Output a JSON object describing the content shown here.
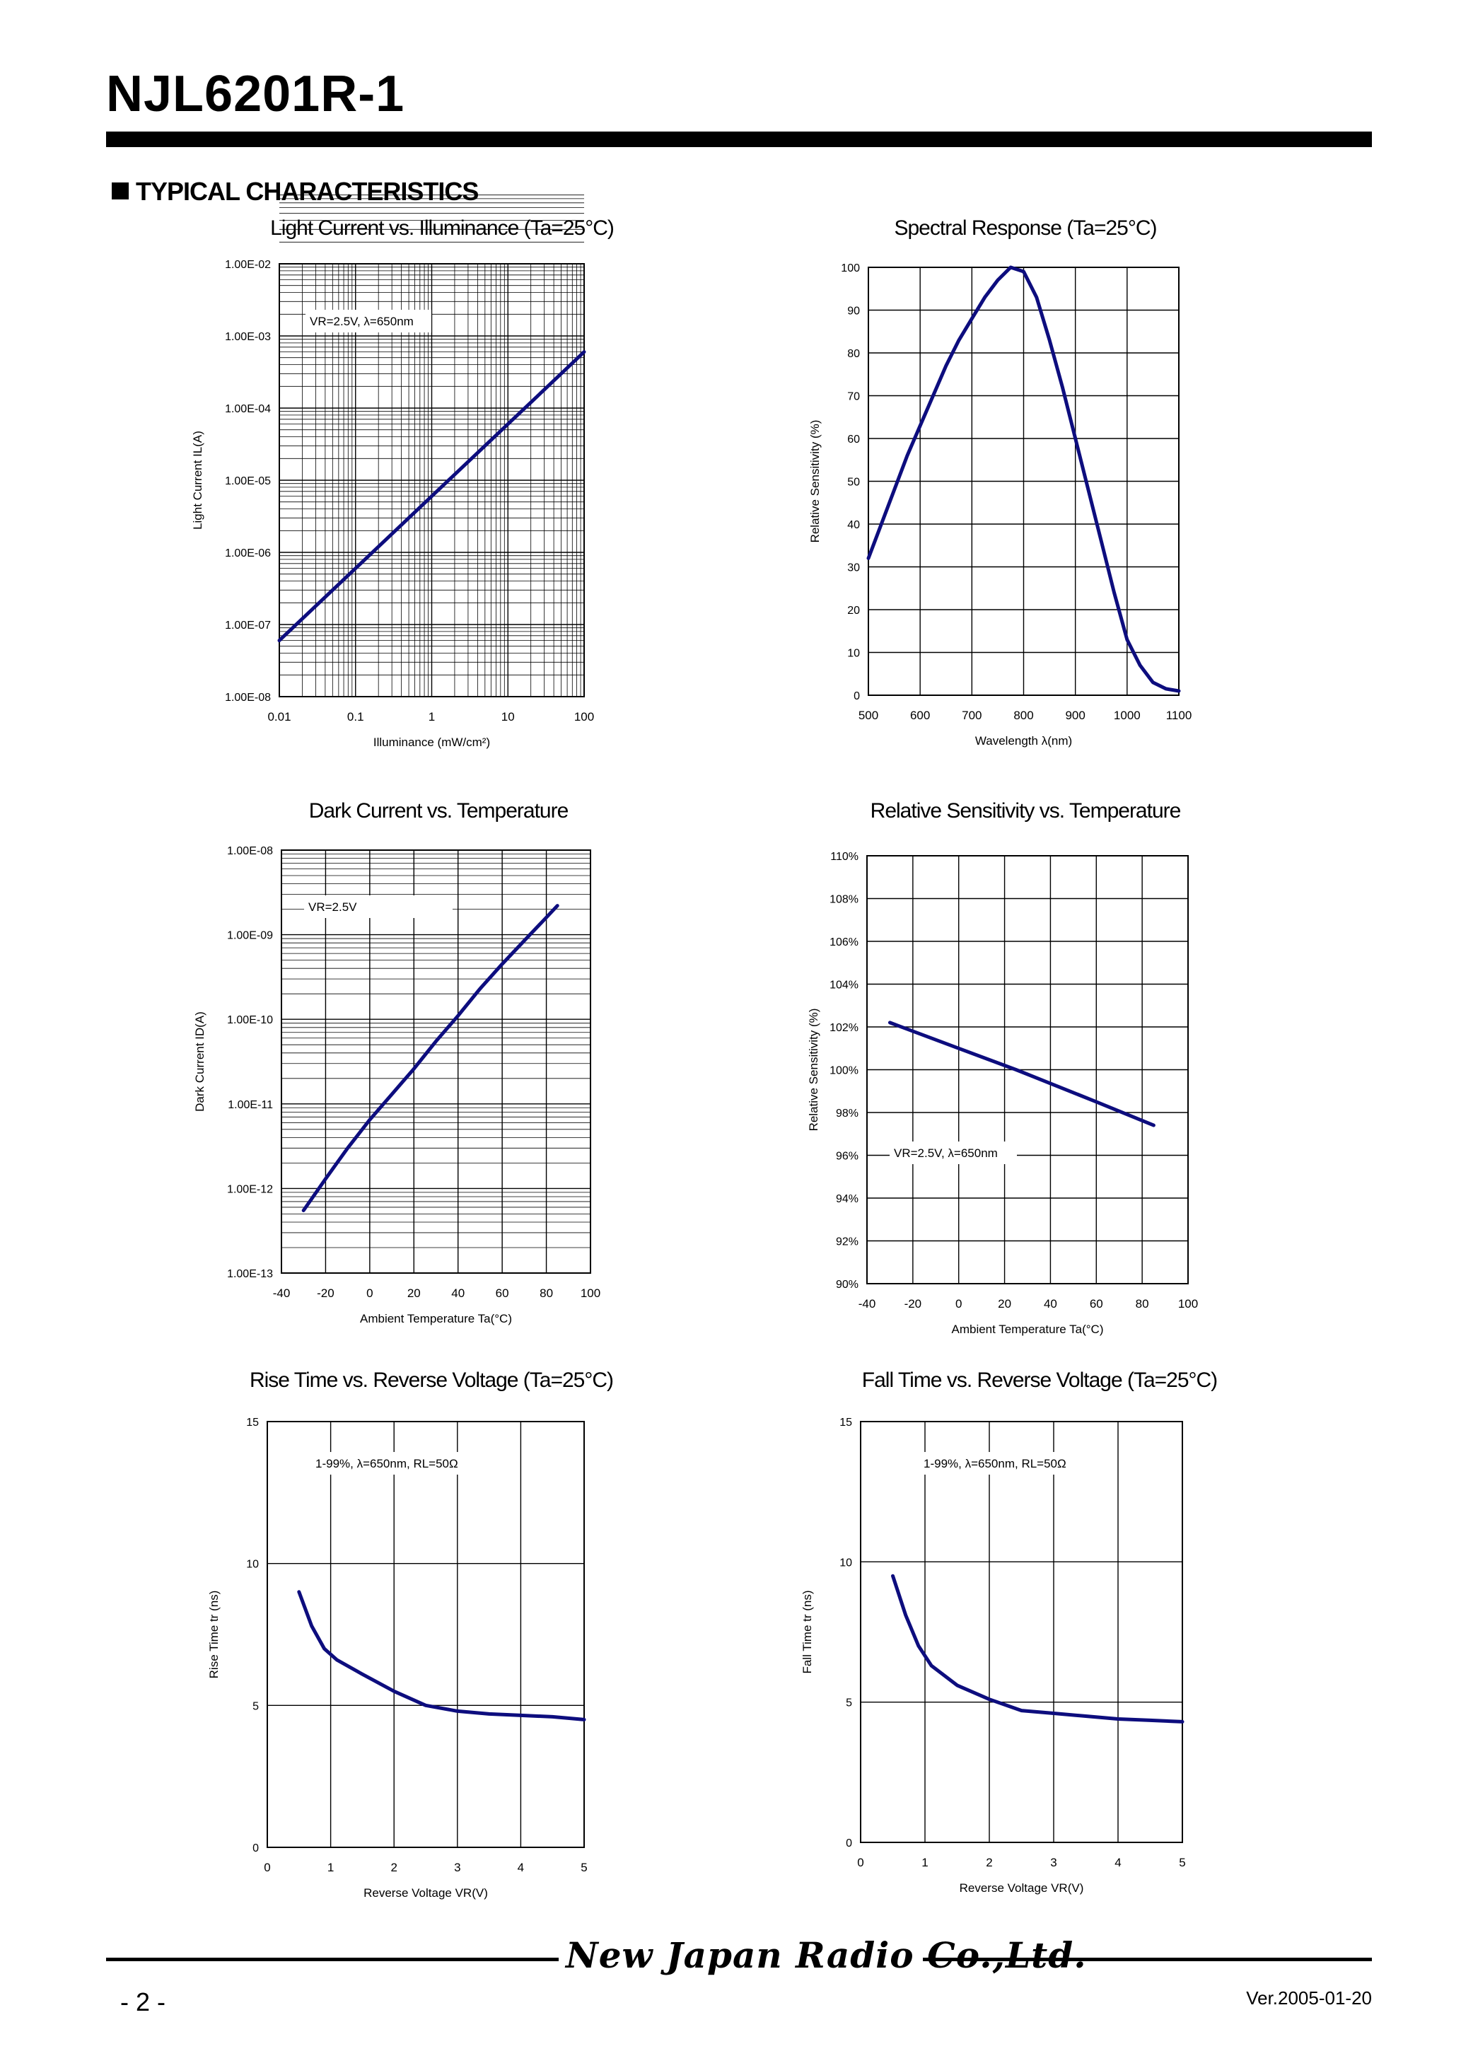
{
  "header": {
    "part_number": "NJL6201R-1",
    "section_title": "TYPICAL CHARACTERISTICS"
  },
  "footer": {
    "page": "- 2 -",
    "logo_text": "New Japan Radio Co.,Ltd.",
    "version": "Ver.2005-01-20"
  },
  "colors": {
    "curve": "#0D0D7E",
    "grid": "#000000"
  },
  "chart_data": [
    {
      "id": "light-current",
      "type": "line",
      "title": "Light Current vs. Illuminance (Ta=25°C)",
      "xlabel": "Illuminance  (mW/cm²)",
      "ylabel": "Light Current  IL(A)",
      "xscale": "log",
      "yscale": "log",
      "xlim": [
        0.01,
        100
      ],
      "ylim": [
        1e-08,
        0.01
      ],
      "xticks": [
        "0.01",
        "0.1",
        "1",
        "10",
        "100"
      ],
      "yticks": [
        "1.00E-02",
        "1.00E-03",
        "1.00E-04",
        "1.00E-05",
        "1.00E-06",
        "1.00E-07",
        "1.00E-08"
      ],
      "annotation": "VR=2.5V, λ=650nm",
      "grid": true,
      "series": [
        {
          "x": [
            0.01,
            0.1,
            1,
            10,
            100
          ],
          "y": [
            6e-08,
            6e-07,
            6e-06,
            6e-05,
            0.0006
          ]
        }
      ]
    },
    {
      "id": "spectral-response",
      "type": "line",
      "title": "Spectral Response (Ta=25°C)",
      "xlabel": "Wavelength λ(nm)",
      "ylabel": "Relative Sensitivity (%)",
      "xlim": [
        500,
        1100
      ],
      "ylim": [
        0,
        100
      ],
      "xticks": [
        "500",
        "600",
        "700",
        "800",
        "900",
        "1000",
        "1100"
      ],
      "yticks": [
        "100",
        "90",
        "80",
        "70",
        "60",
        "50",
        "40",
        "30",
        "20",
        "10",
        "0"
      ],
      "grid": true,
      "series": [
        {
          "x": [
            500,
            525,
            550,
            575,
            600,
            625,
            650,
            675,
            700,
            725,
            750,
            775,
            800,
            825,
            850,
            875,
            900,
            925,
            950,
            975,
            1000,
            1025,
            1050,
            1075,
            1100
          ],
          "y": [
            32,
            40,
            48,
            56,
            63,
            70,
            77,
            83,
            88,
            93,
            97,
            100,
            99,
            93,
            83,
            72,
            60,
            48,
            36,
            24,
            13,
            7,
            3,
            1.5,
            1
          ]
        }
      ]
    },
    {
      "id": "dark-current",
      "type": "line",
      "title": "Dark Current vs. Temperature",
      "xlabel": "Ambient Temperature Ta(°C)",
      "ylabel": "Dark Current  ID(A)",
      "yscale": "log",
      "xlim": [
        -40,
        100
      ],
      "ylim": [
        1e-13,
        1e-08
      ],
      "xticks": [
        "-40",
        "-20",
        "0",
        "20",
        "40",
        "60",
        "80",
        "100"
      ],
      "yticks": [
        "1.00E-08",
        "1.00E-09",
        "1.00E-10",
        "1.00E-11",
        "1.00E-12",
        "1.00E-13"
      ],
      "annotation": "VR=2.5V",
      "grid": true,
      "series": [
        {
          "x": [
            -30,
            -20,
            -10,
            0,
            10,
            20,
            30,
            40,
            50,
            60,
            70,
            80,
            85
          ],
          "y": [
            5.5e-13,
            1.3e-12,
            3e-12,
            6.5e-12,
            1.3e-11,
            2.6e-11,
            5.5e-11,
            1.1e-10,
            2.3e-10,
            4.5e-10,
            8.5e-10,
            1.6e-09,
            2.2e-09
          ]
        }
      ]
    },
    {
      "id": "relative-sensitivity",
      "type": "line",
      "title": "Relative Sensitivity vs. Temperature",
      "xlabel": "Ambient Temperature Ta(°C)",
      "ylabel": "Relative Sensitivity (%)",
      "xlim": [
        -40,
        100
      ],
      "ylim": [
        90,
        110
      ],
      "xticks": [
        "-40",
        "-20",
        "0",
        "20",
        "40",
        "60",
        "80",
        "100"
      ],
      "yticks": [
        "110%",
        "108%",
        "106%",
        "104%",
        "102%",
        "100%",
        "98%",
        "96%",
        "94%",
        "92%",
        "90%"
      ],
      "annotation": "VR=2.5V, λ=650nm",
      "grid": true,
      "series": [
        {
          "x": [
            -30,
            0,
            25,
            60,
            85
          ],
          "y": [
            102.2,
            101,
            100,
            98.5,
            97.4
          ]
        }
      ]
    },
    {
      "id": "rise-time",
      "type": "line",
      "title": "Rise Time vs. Reverse Voltage (Ta=25°C)",
      "xlabel": "Reverse Voltage  VR(V)",
      "ylabel": "Rise Time  tr (ns)",
      "xlim": [
        0,
        5
      ],
      "ylim": [
        0,
        15
      ],
      "xticks": [
        "0",
        "1",
        "2",
        "3",
        "4",
        "5"
      ],
      "yticks": [
        "15",
        "10",
        "5",
        "0"
      ],
      "annotation": "1-99%, λ=650nm, RL=50Ω",
      "grid": true,
      "series": [
        {
          "x": [
            0.5,
            0.7,
            0.9,
            1.1,
            1.5,
            2.0,
            2.5,
            3.0,
            3.5,
            4.0,
            4.5,
            5.0
          ],
          "y": [
            9.0,
            7.8,
            7.0,
            6.6,
            6.1,
            5.5,
            5.0,
            4.8,
            4.7,
            4.65,
            4.6,
            4.5
          ]
        }
      ]
    },
    {
      "id": "fall-time",
      "type": "line",
      "title": "Fall Time vs. Reverse Voltage (Ta=25°C)",
      "xlabel": "Reverse Voltage  VR(V)",
      "ylabel": "Fall Time  tr (ns)",
      "xlim": [
        0,
        5
      ],
      "ylim": [
        0,
        15
      ],
      "xticks": [
        "0",
        "1",
        "2",
        "3",
        "4",
        "5"
      ],
      "yticks": [
        "15",
        "10",
        "5",
        "0"
      ],
      "annotation": "1-99%, λ=650nm, RL=50Ω",
      "grid": true,
      "series": [
        {
          "x": [
            0.5,
            0.7,
            0.9,
            1.1,
            1.5,
            2.0,
            2.5,
            3.0,
            3.5,
            4.0,
            4.5,
            5.0
          ],
          "y": [
            9.5,
            8.1,
            7.0,
            6.3,
            5.6,
            5.1,
            4.7,
            4.6,
            4.5,
            4.4,
            4.35,
            4.3
          ]
        }
      ]
    }
  ]
}
